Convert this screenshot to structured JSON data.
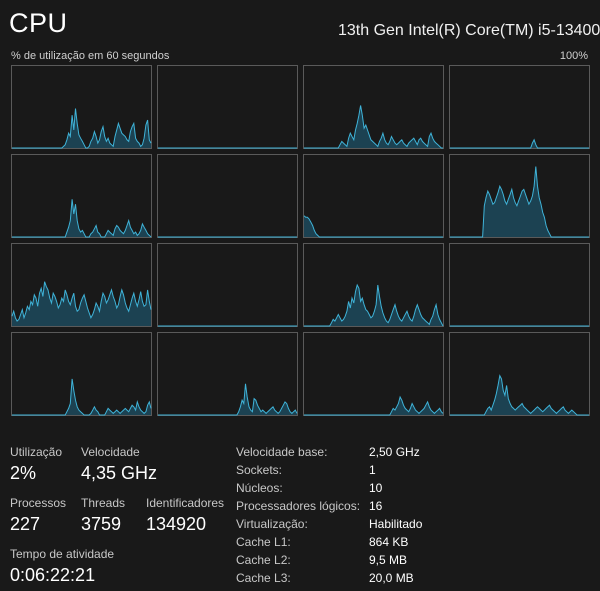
{
  "header": {
    "title": "CPU",
    "cpu_model": "13th Gen Intel(R) Core(TM) i5-13400",
    "util_label": "% de utilização em 60 segundos",
    "util_max": "100%"
  },
  "colors": {
    "line": "#3fb3d8",
    "fill": "#1c4252",
    "border": "#5a5a5a",
    "background": "#191919"
  },
  "cores": [
    [
      0,
      0,
      0,
      0,
      0,
      0,
      0,
      0,
      0,
      0,
      0,
      0,
      0,
      0,
      0,
      0,
      0,
      0,
      0,
      0,
      0,
      0,
      0,
      0,
      0,
      0,
      0,
      0,
      0,
      0,
      2,
      4,
      10,
      18,
      14,
      40,
      22,
      48,
      30,
      16,
      12,
      8,
      4,
      0,
      0,
      2,
      8,
      12,
      20,
      14,
      6,
      10,
      20,
      26,
      14,
      8,
      12,
      6,
      4,
      2,
      14,
      22,
      30,
      24,
      18,
      16,
      14,
      10,
      8,
      20,
      26,
      30,
      12,
      8,
      6,
      2,
      4,
      12,
      28,
      34,
      10,
      6
    ],
    [
      0,
      0,
      0,
      0,
      0,
      0,
      0,
      0,
      0,
      0,
      0,
      0,
      0,
      0,
      0,
      0,
      0,
      0,
      0,
      0,
      0,
      0,
      0,
      0,
      0,
      0,
      0,
      0,
      0,
      0,
      0,
      0,
      0,
      0,
      0,
      0,
      0,
      0,
      0,
      0,
      0,
      0,
      0,
      0,
      0,
      0,
      0,
      0,
      0,
      0,
      0,
      0,
      0,
      0,
      0,
      0,
      0,
      0,
      0,
      0,
      0,
      0,
      0,
      0,
      0,
      0,
      0,
      0,
      0,
      0,
      0,
      0,
      0,
      0,
      0,
      0,
      0,
      0,
      0,
      0,
      0,
      0
    ],
    [
      0,
      0,
      0,
      0,
      0,
      0,
      0,
      0,
      0,
      0,
      0,
      0,
      0,
      0,
      0,
      0,
      0,
      0,
      0,
      0,
      0,
      4,
      8,
      6,
      4,
      2,
      12,
      18,
      14,
      10,
      22,
      30,
      40,
      52,
      40,
      24,
      28,
      22,
      16,
      10,
      8,
      6,
      4,
      2,
      8,
      12,
      18,
      10,
      6,
      4,
      8,
      14,
      10,
      6,
      4,
      6,
      8,
      10,
      6,
      4,
      2,
      6,
      8,
      10,
      12,
      8,
      4,
      10,
      12,
      8,
      6,
      4,
      2,
      14,
      18,
      12,
      8,
      6,
      4,
      2,
      0,
      0
    ],
    [
      0,
      0,
      0,
      0,
      0,
      0,
      0,
      0,
      0,
      0,
      0,
      0,
      0,
      0,
      0,
      0,
      0,
      0,
      0,
      0,
      0,
      0,
      0,
      0,
      0,
      0,
      0,
      0,
      0,
      0,
      0,
      0,
      0,
      0,
      0,
      0,
      0,
      0,
      0,
      0,
      0,
      0,
      0,
      0,
      0,
      0,
      0,
      0,
      6,
      10,
      4,
      0,
      0,
      0,
      0,
      0,
      0,
      0,
      0,
      0,
      0,
      0,
      0,
      0,
      0,
      0,
      0,
      0,
      0,
      0,
      0,
      0,
      0,
      0,
      0,
      0,
      0,
      0,
      0,
      0,
      0,
      0
    ],
    [
      0,
      0,
      0,
      0,
      0,
      0,
      0,
      0,
      0,
      0,
      0,
      0,
      0,
      0,
      0,
      0,
      0,
      0,
      0,
      0,
      0,
      0,
      0,
      0,
      0,
      0,
      0,
      0,
      0,
      0,
      0,
      0,
      6,
      12,
      20,
      46,
      28,
      40,
      20,
      10,
      6,
      8,
      4,
      0,
      0,
      0,
      4,
      6,
      10,
      14,
      6,
      4,
      0,
      0,
      0,
      4,
      8,
      6,
      4,
      2,
      10,
      14,
      12,
      8,
      6,
      4,
      8,
      14,
      20,
      12,
      8,
      4,
      6,
      2,
      4,
      8,
      16,
      12,
      8,
      4,
      2,
      0
    ],
    [
      0,
      0,
      0,
      0,
      0,
      0,
      0,
      0,
      0,
      0,
      0,
      0,
      0,
      0,
      0,
      0,
      0,
      0,
      0,
      0,
      0,
      0,
      0,
      0,
      0,
      0,
      0,
      0,
      0,
      0,
      0,
      0,
      0,
      0,
      0,
      0,
      0,
      0,
      0,
      0,
      0,
      0,
      0,
      0,
      0,
      0,
      0,
      0,
      0,
      0,
      0,
      0,
      0,
      0,
      0,
      0,
      0,
      0,
      0,
      0,
      0,
      0,
      0,
      0,
      0,
      0,
      0,
      0,
      0,
      0,
      0,
      0,
      0,
      0,
      0,
      0,
      0,
      0,
      0,
      0,
      0,
      0
    ],
    [
      26,
      24,
      24,
      22,
      18,
      14,
      8,
      4,
      2,
      0,
      0,
      0,
      0,
      0,
      0,
      0,
      0,
      0,
      0,
      0,
      0,
      0,
      0,
      0,
      0,
      0,
      0,
      0,
      0,
      0,
      0,
      0,
      0,
      0,
      0,
      0,
      0,
      0,
      0,
      0,
      0,
      0,
      0,
      0,
      0,
      0,
      0,
      0,
      0,
      0,
      0,
      0,
      0,
      0,
      0,
      0,
      0,
      0,
      0,
      0,
      0,
      0,
      0,
      0,
      0,
      0,
      0,
      0,
      0,
      0,
      0,
      0,
      0,
      0,
      0,
      0,
      0,
      0,
      0,
      0,
      0,
      0
    ],
    [
      0,
      0,
      0,
      0,
      0,
      0,
      0,
      0,
      0,
      0,
      0,
      0,
      0,
      0,
      0,
      0,
      0,
      0,
      0,
      0,
      38,
      48,
      56,
      52,
      46,
      40,
      42,
      48,
      54,
      62,
      58,
      52,
      44,
      40,
      46,
      52,
      58,
      48,
      42,
      38,
      44,
      50,
      56,
      58,
      52,
      46,
      40,
      44,
      50,
      62,
      86,
      62,
      48,
      40,
      30,
      24,
      14,
      8,
      4,
      0,
      0,
      0,
      0,
      0,
      0,
      0,
      0,
      0,
      0,
      0,
      0,
      0,
      0,
      0,
      0,
      0,
      0,
      0,
      0,
      0,
      0,
      0
    ],
    [
      12,
      18,
      10,
      6,
      8,
      14,
      20,
      10,
      16,
      24,
      20,
      30,
      26,
      38,
      34,
      24,
      40,
      46,
      36,
      54,
      48,
      44,
      34,
      28,
      40,
      36,
      30,
      22,
      26,
      34,
      30,
      44,
      38,
      30,
      26,
      34,
      40,
      24,
      18,
      20,
      28,
      34,
      38,
      30,
      22,
      16,
      10,
      14,
      20,
      28,
      24,
      18,
      30,
      40,
      36,
      28,
      32,
      38,
      44,
      36,
      30,
      22,
      26,
      36,
      44,
      38,
      28,
      22,
      18,
      26,
      34,
      40,
      30,
      24,
      32,
      42,
      30,
      24,
      26,
      44,
      30,
      20
    ],
    [
      0,
      0,
      0,
      0,
      0,
      0,
      0,
      0,
      0,
      0,
      0,
      0,
      0,
      0,
      0,
      0,
      0,
      0,
      0,
      0,
      0,
      0,
      0,
      0,
      0,
      0,
      0,
      0,
      0,
      0,
      0,
      0,
      0,
      0,
      0,
      0,
      0,
      0,
      0,
      0,
      0,
      0,
      0,
      0,
      0,
      0,
      0,
      0,
      0,
      0,
      0,
      0,
      0,
      0,
      0,
      0,
      0,
      0,
      0,
      0,
      0,
      0,
      0,
      0,
      0,
      0,
      0,
      0,
      0,
      0,
      0,
      0,
      0,
      0,
      0,
      0,
      0,
      0,
      0,
      0,
      0,
      0
    ],
    [
      0,
      0,
      0,
      0,
      0,
      0,
      0,
      0,
      0,
      0,
      0,
      0,
      0,
      0,
      0,
      0,
      4,
      8,
      6,
      10,
      14,
      10,
      6,
      8,
      12,
      18,
      30,
      22,
      34,
      28,
      42,
      50,
      46,
      30,
      34,
      26,
      20,
      18,
      14,
      10,
      12,
      18,
      26,
      50,
      36,
      24,
      16,
      10,
      6,
      4,
      8,
      14,
      20,
      26,
      18,
      12,
      8,
      6,
      10,
      14,
      18,
      12,
      8,
      6,
      12,
      20,
      26,
      20,
      14,
      10,
      8,
      6,
      4,
      2,
      8,
      12,
      20,
      26,
      14,
      8,
      4,
      0
    ],
    [
      0,
      0,
      0,
      0,
      0,
      0,
      0,
      0,
      0,
      0,
      0,
      0,
      0,
      0,
      0,
      0,
      0,
      0,
      0,
      0,
      0,
      0,
      0,
      0,
      0,
      0,
      0,
      0,
      0,
      0,
      0,
      0,
      0,
      0,
      0,
      0,
      0,
      0,
      0,
      0,
      0,
      0,
      0,
      0,
      0,
      0,
      0,
      0,
      0,
      0,
      0,
      0,
      0,
      0,
      0,
      0,
      0,
      0,
      0,
      0,
      0,
      0,
      0,
      0,
      0,
      0,
      0,
      0,
      0,
      0,
      0,
      0,
      0,
      0,
      0,
      0,
      0,
      0,
      0,
      0,
      0,
      0
    ],
    [
      0,
      0,
      0,
      0,
      0,
      0,
      0,
      0,
      0,
      0,
      0,
      0,
      0,
      0,
      0,
      0,
      0,
      0,
      0,
      0,
      0,
      0,
      0,
      0,
      0,
      0,
      0,
      0,
      0,
      0,
      0,
      0,
      4,
      8,
      14,
      44,
      30,
      18,
      10,
      6,
      4,
      2,
      0,
      0,
      0,
      0,
      2,
      6,
      10,
      6,
      4,
      0,
      0,
      0,
      0,
      4,
      8,
      6,
      4,
      2,
      4,
      6,
      4,
      2,
      4,
      6,
      8,
      6,
      4,
      8,
      12,
      10,
      6,
      16,
      10,
      6,
      4,
      2,
      4,
      12,
      16,
      8
    ],
    [
      0,
      0,
      0,
      0,
      0,
      0,
      0,
      0,
      0,
      0,
      0,
      0,
      0,
      0,
      0,
      0,
      0,
      0,
      0,
      0,
      0,
      0,
      0,
      0,
      0,
      0,
      0,
      0,
      0,
      0,
      0,
      0,
      0,
      0,
      0,
      0,
      0,
      0,
      0,
      0,
      0,
      0,
      0,
      0,
      0,
      0,
      0,
      4,
      10,
      18,
      14,
      38,
      22,
      10,
      6,
      4,
      20,
      18,
      12,
      8,
      4,
      6,
      4,
      2,
      4,
      6,
      8,
      10,
      6,
      4,
      2,
      4,
      8,
      12,
      16,
      14,
      8,
      4,
      2,
      4,
      6,
      2
    ],
    [
      0,
      0,
      0,
      0,
      0,
      0,
      0,
      0,
      0,
      0,
      0,
      0,
      0,
      0,
      0,
      0,
      0,
      0,
      0,
      0,
      0,
      0,
      0,
      0,
      0,
      0,
      0,
      0,
      0,
      0,
      0,
      0,
      0,
      0,
      0,
      0,
      0,
      0,
      0,
      0,
      0,
      0,
      0,
      0,
      0,
      0,
      0,
      0,
      0,
      0,
      0,
      4,
      8,
      6,
      10,
      14,
      22,
      18,
      12,
      8,
      6,
      4,
      8,
      14,
      10,
      6,
      4,
      2,
      4,
      6,
      8,
      12,
      16,
      10,
      6,
      4,
      2,
      4,
      6,
      8,
      4,
      2
    ],
    [
      0,
      0,
      0,
      0,
      0,
      0,
      0,
      0,
      0,
      0,
      0,
      0,
      0,
      0,
      0,
      0,
      0,
      0,
      0,
      0,
      0,
      4,
      8,
      10,
      6,
      12,
      18,
      26,
      36,
      48,
      44,
      30,
      24,
      36,
      20,
      14,
      10,
      8,
      6,
      8,
      10,
      12,
      14,
      10,
      8,
      6,
      4,
      2,
      4,
      6,
      8,
      10,
      8,
      6,
      4,
      6,
      8,
      10,
      12,
      8,
      6,
      4,
      2,
      4,
      6,
      8,
      10,
      6,
      4,
      2,
      4,
      6,
      4,
      2,
      0,
      0,
      0,
      0,
      0,
      0,
      0,
      0
    ]
  ],
  "stats": {
    "utilization": {
      "label": "Utilização",
      "value": "2%"
    },
    "speed": {
      "label": "Velocidade",
      "value": "4,35 GHz"
    },
    "processes": {
      "label": "Processos",
      "value": "227"
    },
    "threads": {
      "label": "Threads",
      "value": "3759"
    },
    "handles": {
      "label": "Identificadores",
      "value": "134920"
    },
    "uptime": {
      "label": "Tempo de atividade",
      "value": "0:06:22:21"
    }
  },
  "specs": [
    {
      "label": "Velocidade base:",
      "value": "2,50 GHz"
    },
    {
      "label": "Sockets:",
      "value": "1"
    },
    {
      "label": "Núcleos:",
      "value": "10"
    },
    {
      "label": "Processadores lógicos:",
      "value": "16"
    },
    {
      "label": "Virtualização:",
      "value": "Habilitado"
    },
    {
      "label": "Cache L1:",
      "value": "864 KB"
    },
    {
      "label": "Cache L2:",
      "value": "9,5 MB"
    },
    {
      "label": "Cache L3:",
      "value": "20,0 MB"
    }
  ]
}
